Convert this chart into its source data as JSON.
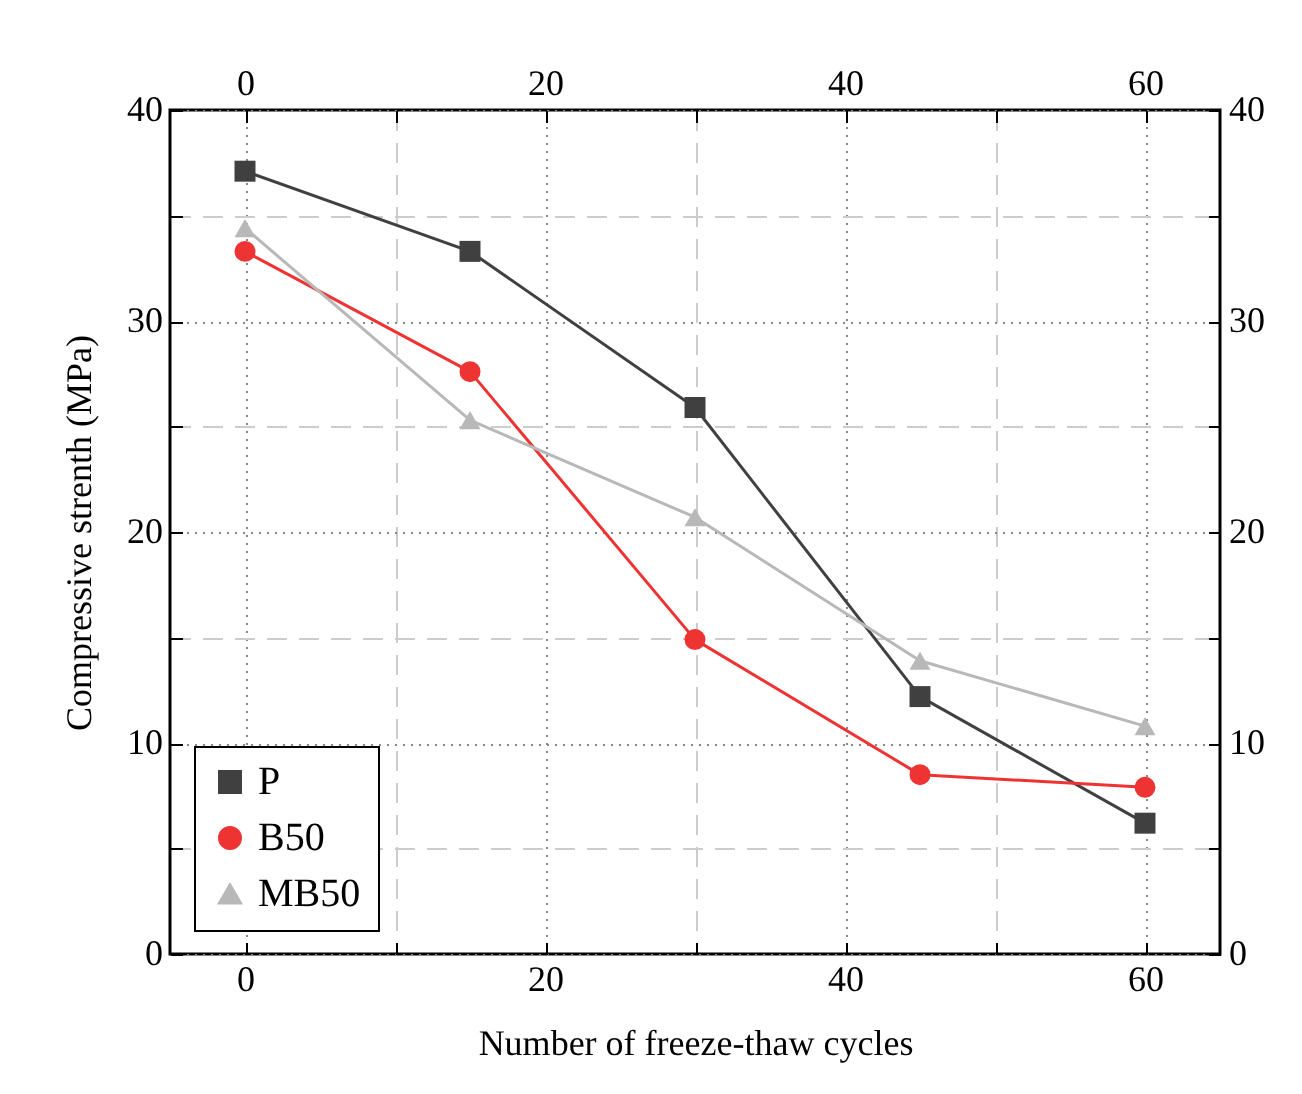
{
  "chart_data": {
    "type": "line",
    "xlabel": "Number of freeze-thaw cycles",
    "ylabel": "Compressive strenth (MPa)",
    "x": [
      0,
      15,
      30,
      45,
      60
    ],
    "series": [
      {
        "name": "P",
        "color": "#404040",
        "marker": "square",
        "values": [
          37.1,
          33.3,
          25.9,
          12.2,
          6.2
        ]
      },
      {
        "name": "B50",
        "color": "#ee3333",
        "marker": "circle",
        "values": [
          33.3,
          27.6,
          14.9,
          8.5,
          7.9
        ]
      },
      {
        "name": "MB50",
        "color": "#b8b8b8",
        "marker": "triangle",
        "values": [
          34.4,
          25.3,
          20.7,
          13.9,
          10.8
        ]
      }
    ],
    "xlim": [
      -5,
      65
    ],
    "xticks": [
      0,
      {
        "value": 10,
        "label": null
      },
      20,
      {
        "value": 30,
        "label": null
      },
      40,
      {
        "value": 50,
        "label": null
      },
      60
    ],
    "x2lim": [
      -5,
      65
    ],
    "x2ticks": [
      0,
      {
        "value": 10,
        "label": null
      },
      20,
      {
        "value": 30,
        "label": null
      },
      40,
      {
        "value": 50,
        "label": null
      },
      60
    ],
    "ylim": [
      0,
      40
    ],
    "yticks": [
      0,
      {
        "value": 5,
        "label": null
      },
      10,
      {
        "value": 15,
        "label": null
      },
      20,
      {
        "value": 25,
        "label": null
      },
      30,
      {
        "value": 35,
        "label": null
      },
      40
    ],
    "y2lim": [
      0,
      40
    ],
    "y2ticks": [
      0,
      {
        "value": 5,
        "label": null
      },
      10,
      {
        "value": 15,
        "label": null
      },
      20,
      {
        "value": 25,
        "label": null
      },
      30,
      {
        "value": 35,
        "label": null
      },
      40
    ],
    "grid": true,
    "legend": "bottom left",
    "line_style": "solid"
  }
}
